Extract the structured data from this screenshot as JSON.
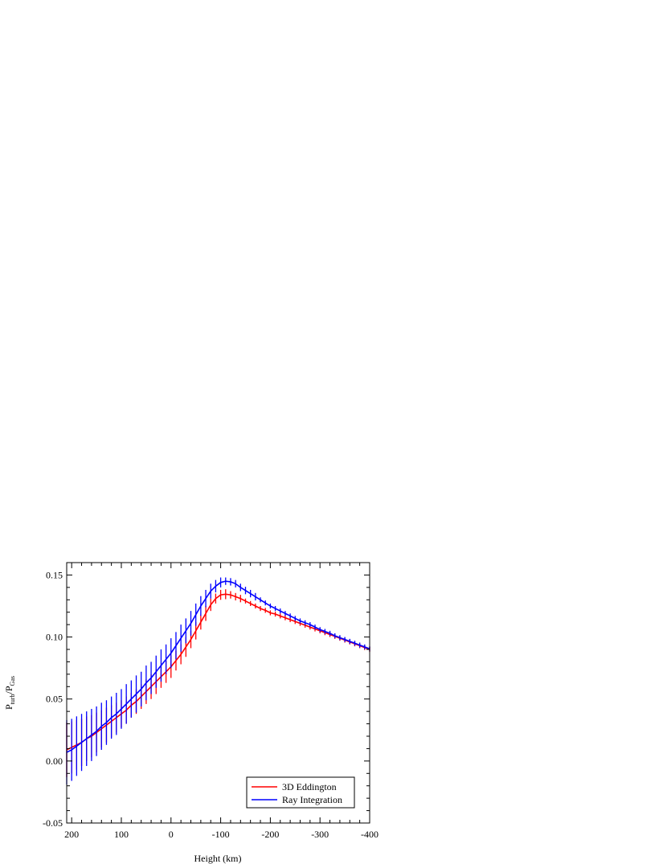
{
  "chart_data": {
    "type": "line",
    "title": "",
    "xlabel": "Height (km)",
    "ylabel_main": "P",
    "ylabel_sub1": "turb",
    "ylabel_mid": "/P",
    "ylabel_sub2": "Gas",
    "xlim": [
      210,
      -400
    ],
    "ylim": [
      -0.05,
      0.16
    ],
    "x_ticks": [
      200,
      100,
      0,
      -100,
      -200,
      -300,
      -400
    ],
    "x_tick_labels": [
      "200",
      "100",
      "0",
      "-100",
      "-200",
      "-300",
      "-400"
    ],
    "y_ticks": [
      -0.05,
      0.0,
      0.05,
      0.1,
      0.15
    ],
    "y_tick_labels": [
      "-0.05",
      "0.00",
      "0.05",
      "0.10",
      "0.15"
    ],
    "grid": false,
    "legend_position": "bottom-right",
    "series": [
      {
        "name": "3D Eddington",
        "color": "#ff0000",
        "x": [
          210,
          200,
          190,
          180,
          170,
          160,
          150,
          140,
          130,
          120,
          110,
          100,
          90,
          80,
          70,
          60,
          50,
          40,
          30,
          20,
          10,
          0,
          -10,
          -20,
          -30,
          -40,
          -50,
          -60,
          -70,
          -80,
          -90,
          -100,
          -110,
          -120,
          -130,
          -140,
          -150,
          -160,
          -170,
          -180,
          -190,
          -200,
          -210,
          -220,
          -230,
          -240,
          -250,
          -260,
          -270,
          -280,
          -290,
          -300,
          -310,
          -320,
          -330,
          -340,
          -350,
          -360,
          -370,
          -380,
          -390,
          -400
        ],
        "y": [
          0.009,
          0.011,
          0.013,
          0.015,
          0.018,
          0.02,
          0.023,
          0.026,
          0.029,
          0.032,
          0.035,
          0.038,
          0.041,
          0.045,
          0.048,
          0.052,
          0.056,
          0.06,
          0.064,
          0.068,
          0.072,
          0.076,
          0.081,
          0.086,
          0.092,
          0.098,
          0.105,
          0.112,
          0.119,
          0.126,
          0.131,
          0.134,
          0.1345,
          0.134,
          0.1325,
          0.131,
          0.129,
          0.127,
          0.125,
          0.123,
          0.1215,
          0.1195,
          0.1185,
          0.117,
          0.1155,
          0.114,
          0.1125,
          0.111,
          0.1095,
          0.108,
          0.1065,
          0.105,
          0.1035,
          0.102,
          0.1005,
          0.099,
          0.0975,
          0.096,
          0.0945,
          0.093,
          0.0915,
          0.09
        ],
        "err": [
          0.022,
          0.021,
          0.02,
          0.019,
          0.018,
          0.017,
          0.016,
          0.015,
          0.014,
          0.013,
          0.012,
          0.011,
          0.011,
          0.01,
          0.01,
          0.01,
          0.01,
          0.01,
          0.01,
          0.009,
          0.009,
          0.009,
          0.008,
          0.008,
          0.008,
          0.007,
          0.007,
          0.006,
          0.006,
          0.005,
          0.004,
          0.004,
          0.004,
          0.003,
          0.003,
          0.003,
          0.002,
          0.002,
          0.002,
          0.002,
          0.002,
          0.002,
          0.002,
          0.002,
          0.002,
          0.002,
          0.002,
          0.002,
          0.002,
          0.002,
          0.002,
          0.002,
          0.002,
          0.002,
          0.002,
          0.002,
          0.002,
          0.002,
          0.002,
          0.002,
          0.002,
          0.002
        ]
      },
      {
        "name": "Ray Integration",
        "color": "#0000ff",
        "x": [
          210,
          200,
          190,
          180,
          170,
          160,
          150,
          140,
          130,
          120,
          110,
          100,
          90,
          80,
          70,
          60,
          50,
          40,
          30,
          20,
          10,
          0,
          -10,
          -20,
          -30,
          -40,
          -50,
          -60,
          -70,
          -80,
          -90,
          -100,
          -110,
          -120,
          -130,
          -140,
          -150,
          -160,
          -170,
          -180,
          -190,
          -200,
          -210,
          -220,
          -230,
          -240,
          -250,
          -260,
          -270,
          -280,
          -290,
          -300,
          -310,
          -320,
          -330,
          -340,
          -350,
          -360,
          -370,
          -380,
          -390,
          -400
        ],
        "y": [
          0.007,
          0.009,
          0.012,
          0.015,
          0.018,
          0.021,
          0.024,
          0.028,
          0.031,
          0.035,
          0.038,
          0.042,
          0.046,
          0.05,
          0.054,
          0.058,
          0.063,
          0.067,
          0.072,
          0.077,
          0.082,
          0.087,
          0.093,
          0.099,
          0.105,
          0.111,
          0.118,
          0.125,
          0.131,
          0.137,
          0.141,
          0.144,
          0.145,
          0.1445,
          0.143,
          0.14,
          0.1375,
          0.135,
          0.1325,
          0.13,
          0.1275,
          0.125,
          0.123,
          0.121,
          0.119,
          0.117,
          0.115,
          0.113,
          0.1115,
          0.11,
          0.108,
          0.106,
          0.1045,
          0.103,
          0.101,
          0.0995,
          0.098,
          0.0965,
          0.095,
          0.0935,
          0.092,
          0.0905
        ],
        "err": [
          0.026,
          0.025,
          0.024,
          0.023,
          0.022,
          0.021,
          0.02,
          0.019,
          0.018,
          0.017,
          0.017,
          0.016,
          0.016,
          0.015,
          0.015,
          0.014,
          0.014,
          0.013,
          0.013,
          0.013,
          0.012,
          0.012,
          0.011,
          0.011,
          0.01,
          0.01,
          0.009,
          0.008,
          0.007,
          0.006,
          0.005,
          0.004,
          0.003,
          0.003,
          0.003,
          0.003,
          0.003,
          0.003,
          0.003,
          0.002,
          0.002,
          0.002,
          0.002,
          0.002,
          0.002,
          0.002,
          0.002,
          0.002,
          0.002,
          0.002,
          0.002,
          0.002,
          0.002,
          0.002,
          0.002,
          0.002,
          0.002,
          0.002,
          0.002,
          0.002,
          0.002,
          0.002
        ]
      }
    ]
  }
}
